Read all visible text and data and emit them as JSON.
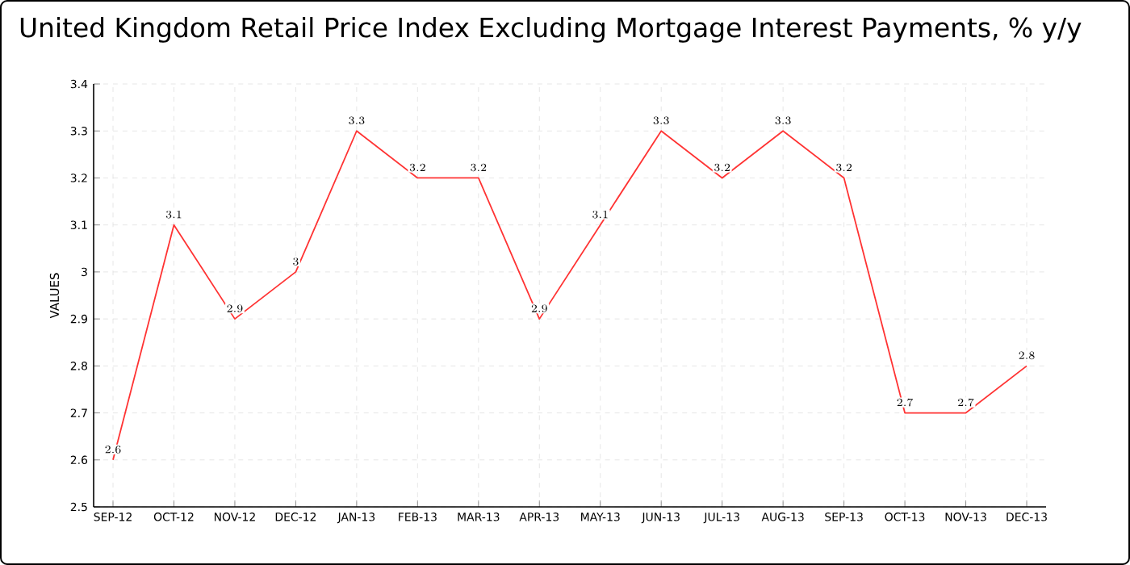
{
  "chart_data": {
    "type": "line",
    "title": "United Kingdom Retail Price Index Excluding Mortgage Interest Payments, % y/y",
    "ylabel": "VALUES",
    "categories": [
      "SEP-12",
      "OCT-12",
      "NOV-12",
      "DEC-12",
      "JAN-13",
      "FEB-13",
      "MAR-13",
      "APR-13",
      "MAY-13",
      "JUN-13",
      "JUL-13",
      "AUG-13",
      "SEP-13",
      "OCT-13",
      "NOV-13",
      "DEC-13"
    ],
    "series": [
      {
        "color": "#ff3333",
        "values": [
          2.6,
          3.1,
          2.9,
          3,
          3.3,
          3.2,
          3.2,
          2.9,
          3.1,
          3.3,
          3.2,
          3.3,
          3.2,
          2.7,
          2.7,
          2.8
        ]
      }
    ],
    "ylim": [
      2.5,
      3.4
    ],
    "yticks": [
      2.5,
      2.6,
      2.7,
      2.8,
      2.9,
      3,
      3.1,
      3.2,
      3.3,
      3.4
    ],
    "grid": true,
    "data_labels": true,
    "marker": "none",
    "line_style": "solid"
  }
}
